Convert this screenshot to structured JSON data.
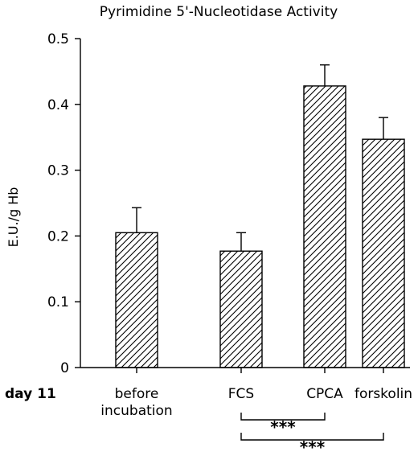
{
  "chart_data": {
    "type": "bar",
    "title": "Pyrimidine 5'-Nucleotidase Activity",
    "ylabel": "E.U./g Hb",
    "xlabel": "",
    "ylim": [
      0,
      0.5
    ],
    "yticks": [
      "0",
      "0.1",
      "0.2",
      "0.3",
      "0.4",
      "0.5"
    ],
    "row_label": "day 11",
    "categories": [
      "before incubation",
      "FCS",
      "CPCA",
      "forskolin"
    ],
    "category_lines": [
      [
        "before",
        "incubation"
      ],
      [
        "FCS"
      ],
      [
        "CPCA"
      ],
      [
        "forskolin"
      ]
    ],
    "values": [
      0.205,
      0.177,
      0.428,
      0.347
    ],
    "error": [
      0.038,
      0.028,
      0.032,
      0.033
    ],
    "fill_pattern": "diagonal-hatch",
    "grid": false,
    "significance": [
      {
        "from": "FCS",
        "to": "CPCA",
        "label": "***"
      },
      {
        "from": "FCS",
        "to": "forskolin",
        "label": "***"
      }
    ]
  }
}
